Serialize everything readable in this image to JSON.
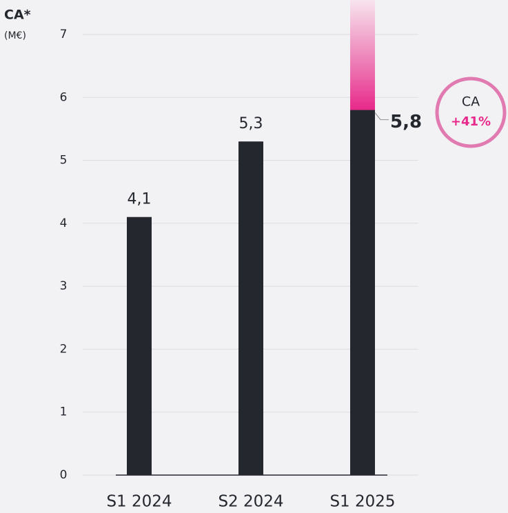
{
  "chart_data": {
    "type": "bar",
    "title": "CA*",
    "subtitle": "(M€)",
    "categories": [
      "S1 2024",
      "S2 2024",
      "S1 2025"
    ],
    "values": [
      4.1,
      5.3,
      5.8
    ],
    "value_labels": [
      "4,1",
      "5,3",
      "5,8"
    ],
    "color": "#24272e",
    "ylim": [
      0,
      7
    ],
    "yticks": [
      0,
      1,
      2,
      3,
      4,
      5,
      6,
      7
    ],
    "grid": true,
    "annotation": {
      "label": "CA",
      "value": "+41%"
    }
  }
}
